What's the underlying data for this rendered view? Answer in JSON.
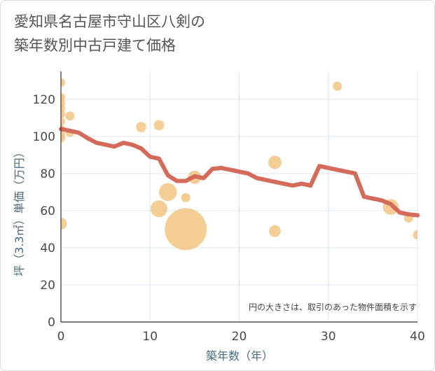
{
  "chart_data": {
    "type": "scatter+line",
    "title": [
      "愛知県名古屋市守山区八剣の",
      "築年数別中古戸建て価格"
    ],
    "xlabel": "築年数（年）",
    "ylabel": "坪（3.3㎡）単価（万円）",
    "xlim": [
      0,
      40
    ],
    "ylim": [
      0,
      135
    ],
    "xticks": [
      "0",
      "10",
      "20",
      "30",
      "40"
    ],
    "yticks": [
      "0",
      "20",
      "40",
      "60",
      "80",
      "100",
      "120"
    ],
    "note": "円の大きさは、取引のあった物件面積を示す",
    "colors": {
      "line": "#d36a5a",
      "bubble": "#f2c27a",
      "grid": "#dfe6ee"
    },
    "scatter": [
      {
        "x": 0,
        "y": 129,
        "s": 1
      },
      {
        "x": 0,
        "y": 121,
        "s": 1
      },
      {
        "x": 0,
        "y": 118,
        "s": 1
      },
      {
        "x": 0,
        "y": 115,
        "s": 1
      },
      {
        "x": 0,
        "y": 112,
        "s": 1
      },
      {
        "x": 0,
        "y": 108,
        "s": 1
      },
      {
        "x": 0,
        "y": 104,
        "s": 1
      },
      {
        "x": 0,
        "y": 101,
        "s": 1
      },
      {
        "x": 0,
        "y": 99,
        "s": 1
      },
      {
        "x": 0,
        "y": 53,
        "s": 2
      },
      {
        "x": 1,
        "y": 111,
        "s": 1.2
      },
      {
        "x": 1,
        "y": 102,
        "s": 1
      },
      {
        "x": 9,
        "y": 105,
        "s": 1.5
      },
      {
        "x": 11,
        "y": 106,
        "s": 1.5
      },
      {
        "x": 11,
        "y": 61,
        "s": 4
      },
      {
        "x": 12,
        "y": 70,
        "s": 4.5
      },
      {
        "x": 14,
        "y": 67,
        "s": 1.2
      },
      {
        "x": 14,
        "y": 50,
        "s": 25
      },
      {
        "x": 15,
        "y": 78,
        "s": 2.5
      },
      {
        "x": 24,
        "y": 86,
        "s": 2.5
      },
      {
        "x": 24,
        "y": 49,
        "s": 2
      },
      {
        "x": 31,
        "y": 127,
        "s": 1.2
      },
      {
        "x": 37,
        "y": 62,
        "s": 3.5
      },
      {
        "x": 39,
        "y": 56,
        "s": 1.2
      },
      {
        "x": 40,
        "y": 47,
        "s": 1.2
      }
    ],
    "line": {
      "x": [
        0,
        1,
        2,
        3,
        4,
        5,
        6,
        7,
        8,
        9,
        10,
        11,
        12,
        13,
        14,
        15,
        16,
        17,
        18,
        19,
        20,
        21,
        22,
        23,
        24,
        25,
        26,
        27,
        28,
        29,
        30,
        31,
        32,
        33,
        34,
        35,
        36,
        37,
        38,
        39,
        40
      ],
      "y": [
        104,
        103,
        102,
        99,
        96.5,
        95.5,
        94.5,
        96.5,
        95.5,
        93.5,
        89,
        88,
        79,
        76,
        76,
        78.5,
        77.5,
        82.5,
        83,
        82,
        81,
        80,
        77.5,
        76.5,
        75.5,
        74.5,
        73.5,
        74.5,
        73.5,
        84,
        83,
        82,
        81,
        80,
        67.5,
        66.5,
        65.5,
        63.5,
        59,
        58,
        57.5
      ]
    }
  }
}
